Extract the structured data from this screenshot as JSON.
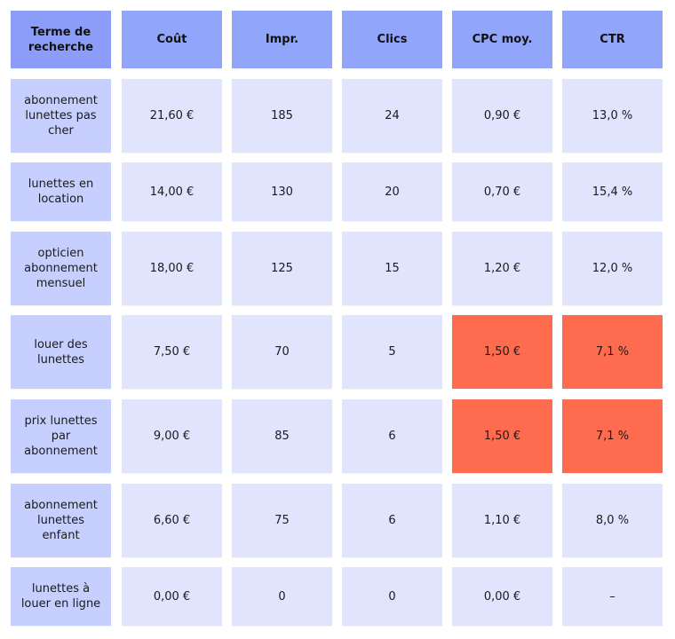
{
  "colors": {
    "header_term": "#8b9df8",
    "header": "#91a5fa",
    "term_cell": "#c6cffd",
    "value_cell": "#e0e4fd",
    "highlight": "#ff6b4e"
  },
  "chart_data": {
    "type": "table",
    "columns": [
      "Terme de recherche",
      "Coût",
      "Impr.",
      "Clics",
      "CPC moy.",
      "CTR"
    ],
    "rows": [
      {
        "cells": [
          "abonnement lunettes pas cher",
          "21,60 €",
          "185",
          "24",
          "0,90 €",
          "13,0 %"
        ],
        "highlight": [
          false,
          false,
          false,
          false,
          false,
          false
        ]
      },
      {
        "cells": [
          "lunettes en location",
          "14,00 €",
          "130",
          "20",
          "0,70 €",
          "15,4 %"
        ],
        "highlight": [
          false,
          false,
          false,
          false,
          false,
          false
        ]
      },
      {
        "cells": [
          "opticien abonnement mensuel",
          "18,00 €",
          "125",
          "15",
          "1,20 €",
          "12,0 %"
        ],
        "highlight": [
          false,
          false,
          false,
          false,
          false,
          false
        ]
      },
      {
        "cells": [
          "louer des lunettes",
          "7,50 €",
          "70",
          "5",
          "1,50 €",
          "7,1 %"
        ],
        "highlight": [
          false,
          false,
          false,
          false,
          true,
          true
        ]
      },
      {
        "cells": [
          "prix lunettes par abonnement",
          "9,00 €",
          "85",
          "6",
          "1,50 €",
          "7,1 %"
        ],
        "highlight": [
          false,
          false,
          false,
          false,
          true,
          true
        ]
      },
      {
        "cells": [
          "abonnement lunettes enfant",
          "6,60 €",
          "75",
          "6",
          "1,10 €",
          "8,0 %"
        ],
        "highlight": [
          false,
          false,
          false,
          false,
          false,
          false
        ]
      },
      {
        "cells": [
          "lunettes à louer en ligne",
          "0,00 €",
          "0",
          "0",
          "0,00 €",
          "–"
        ],
        "highlight": [
          false,
          false,
          false,
          false,
          false,
          false
        ]
      }
    ]
  }
}
